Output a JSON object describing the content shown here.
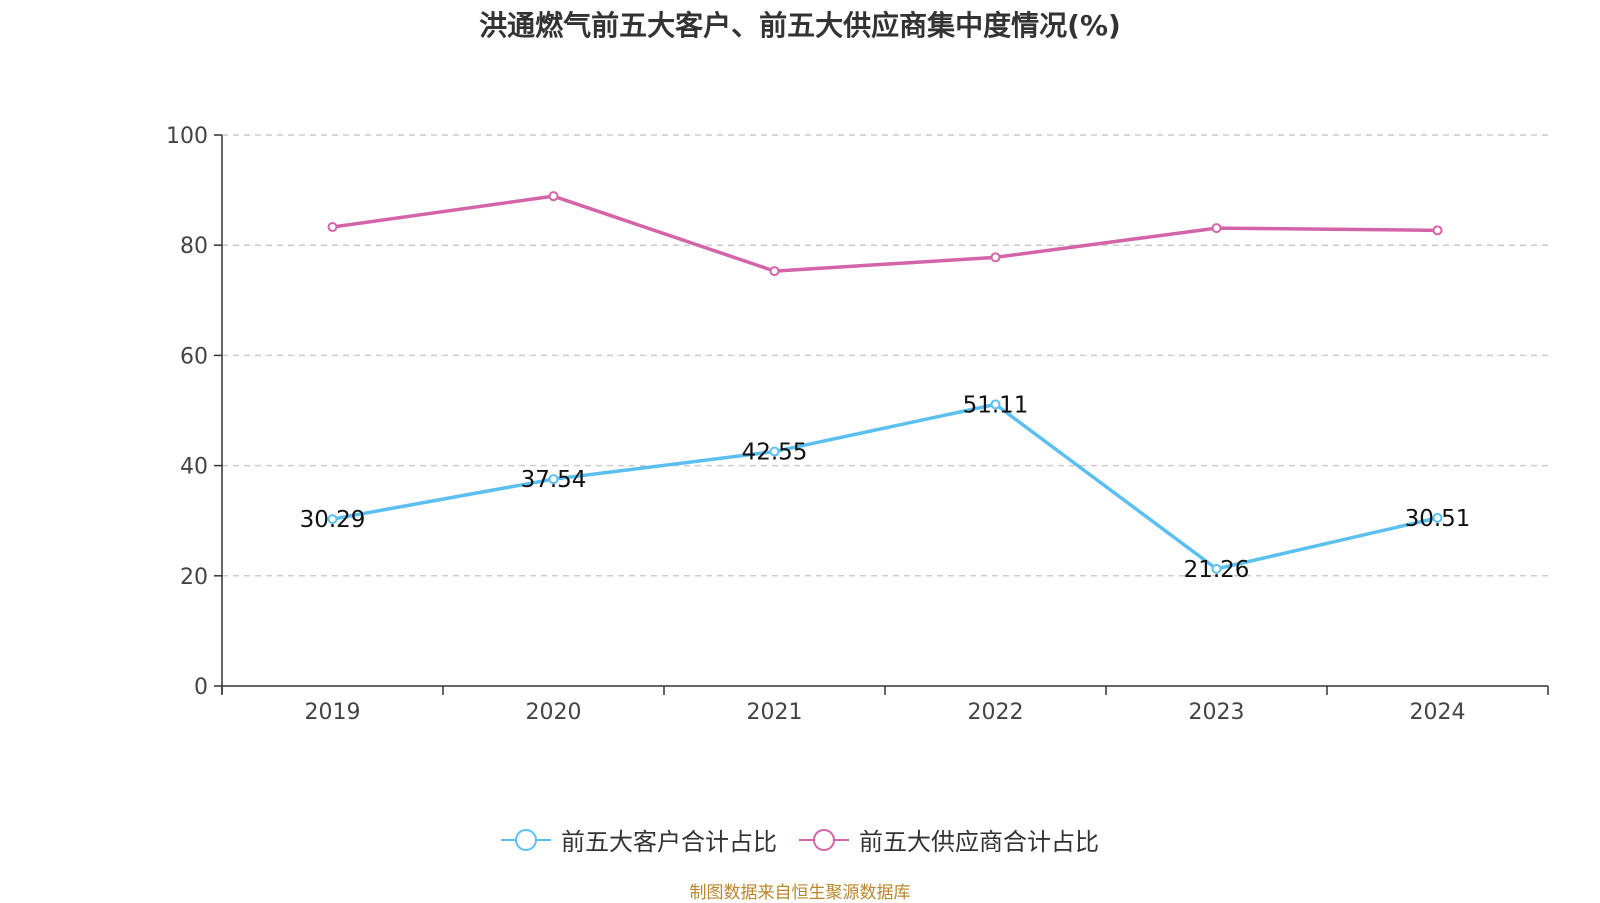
{
  "chart_data": {
    "type": "line",
    "title": "洪通燃气前五大客户、前五大供应商集中度情况(%)",
    "categories": [
      "2019",
      "2020",
      "2021",
      "2022",
      "2023",
      "2024"
    ],
    "ylim": [
      0,
      100
    ],
    "yticks": [
      0,
      20,
      40,
      60,
      80,
      100
    ],
    "grid": true,
    "legend_position": "bottom",
    "series": [
      {
        "name": "前五大客户合计占比",
        "color": "#5bc0f0",
        "values": [
          30.29,
          37.54,
          42.55,
          51.11,
          21.26,
          30.51
        ],
        "data_labels": [
          "30.29",
          "37.54",
          "42.55",
          "51.11",
          "21.26",
          "30.51"
        ]
      },
      {
        "name": "前五大供应商合计占比",
        "color": "#d464a8",
        "values": [
          83.3,
          88.9,
          75.3,
          77.8,
          83.1,
          82.7
        ],
        "data_labels": []
      }
    ]
  },
  "source": "制图数据来自恒生聚源数据库"
}
